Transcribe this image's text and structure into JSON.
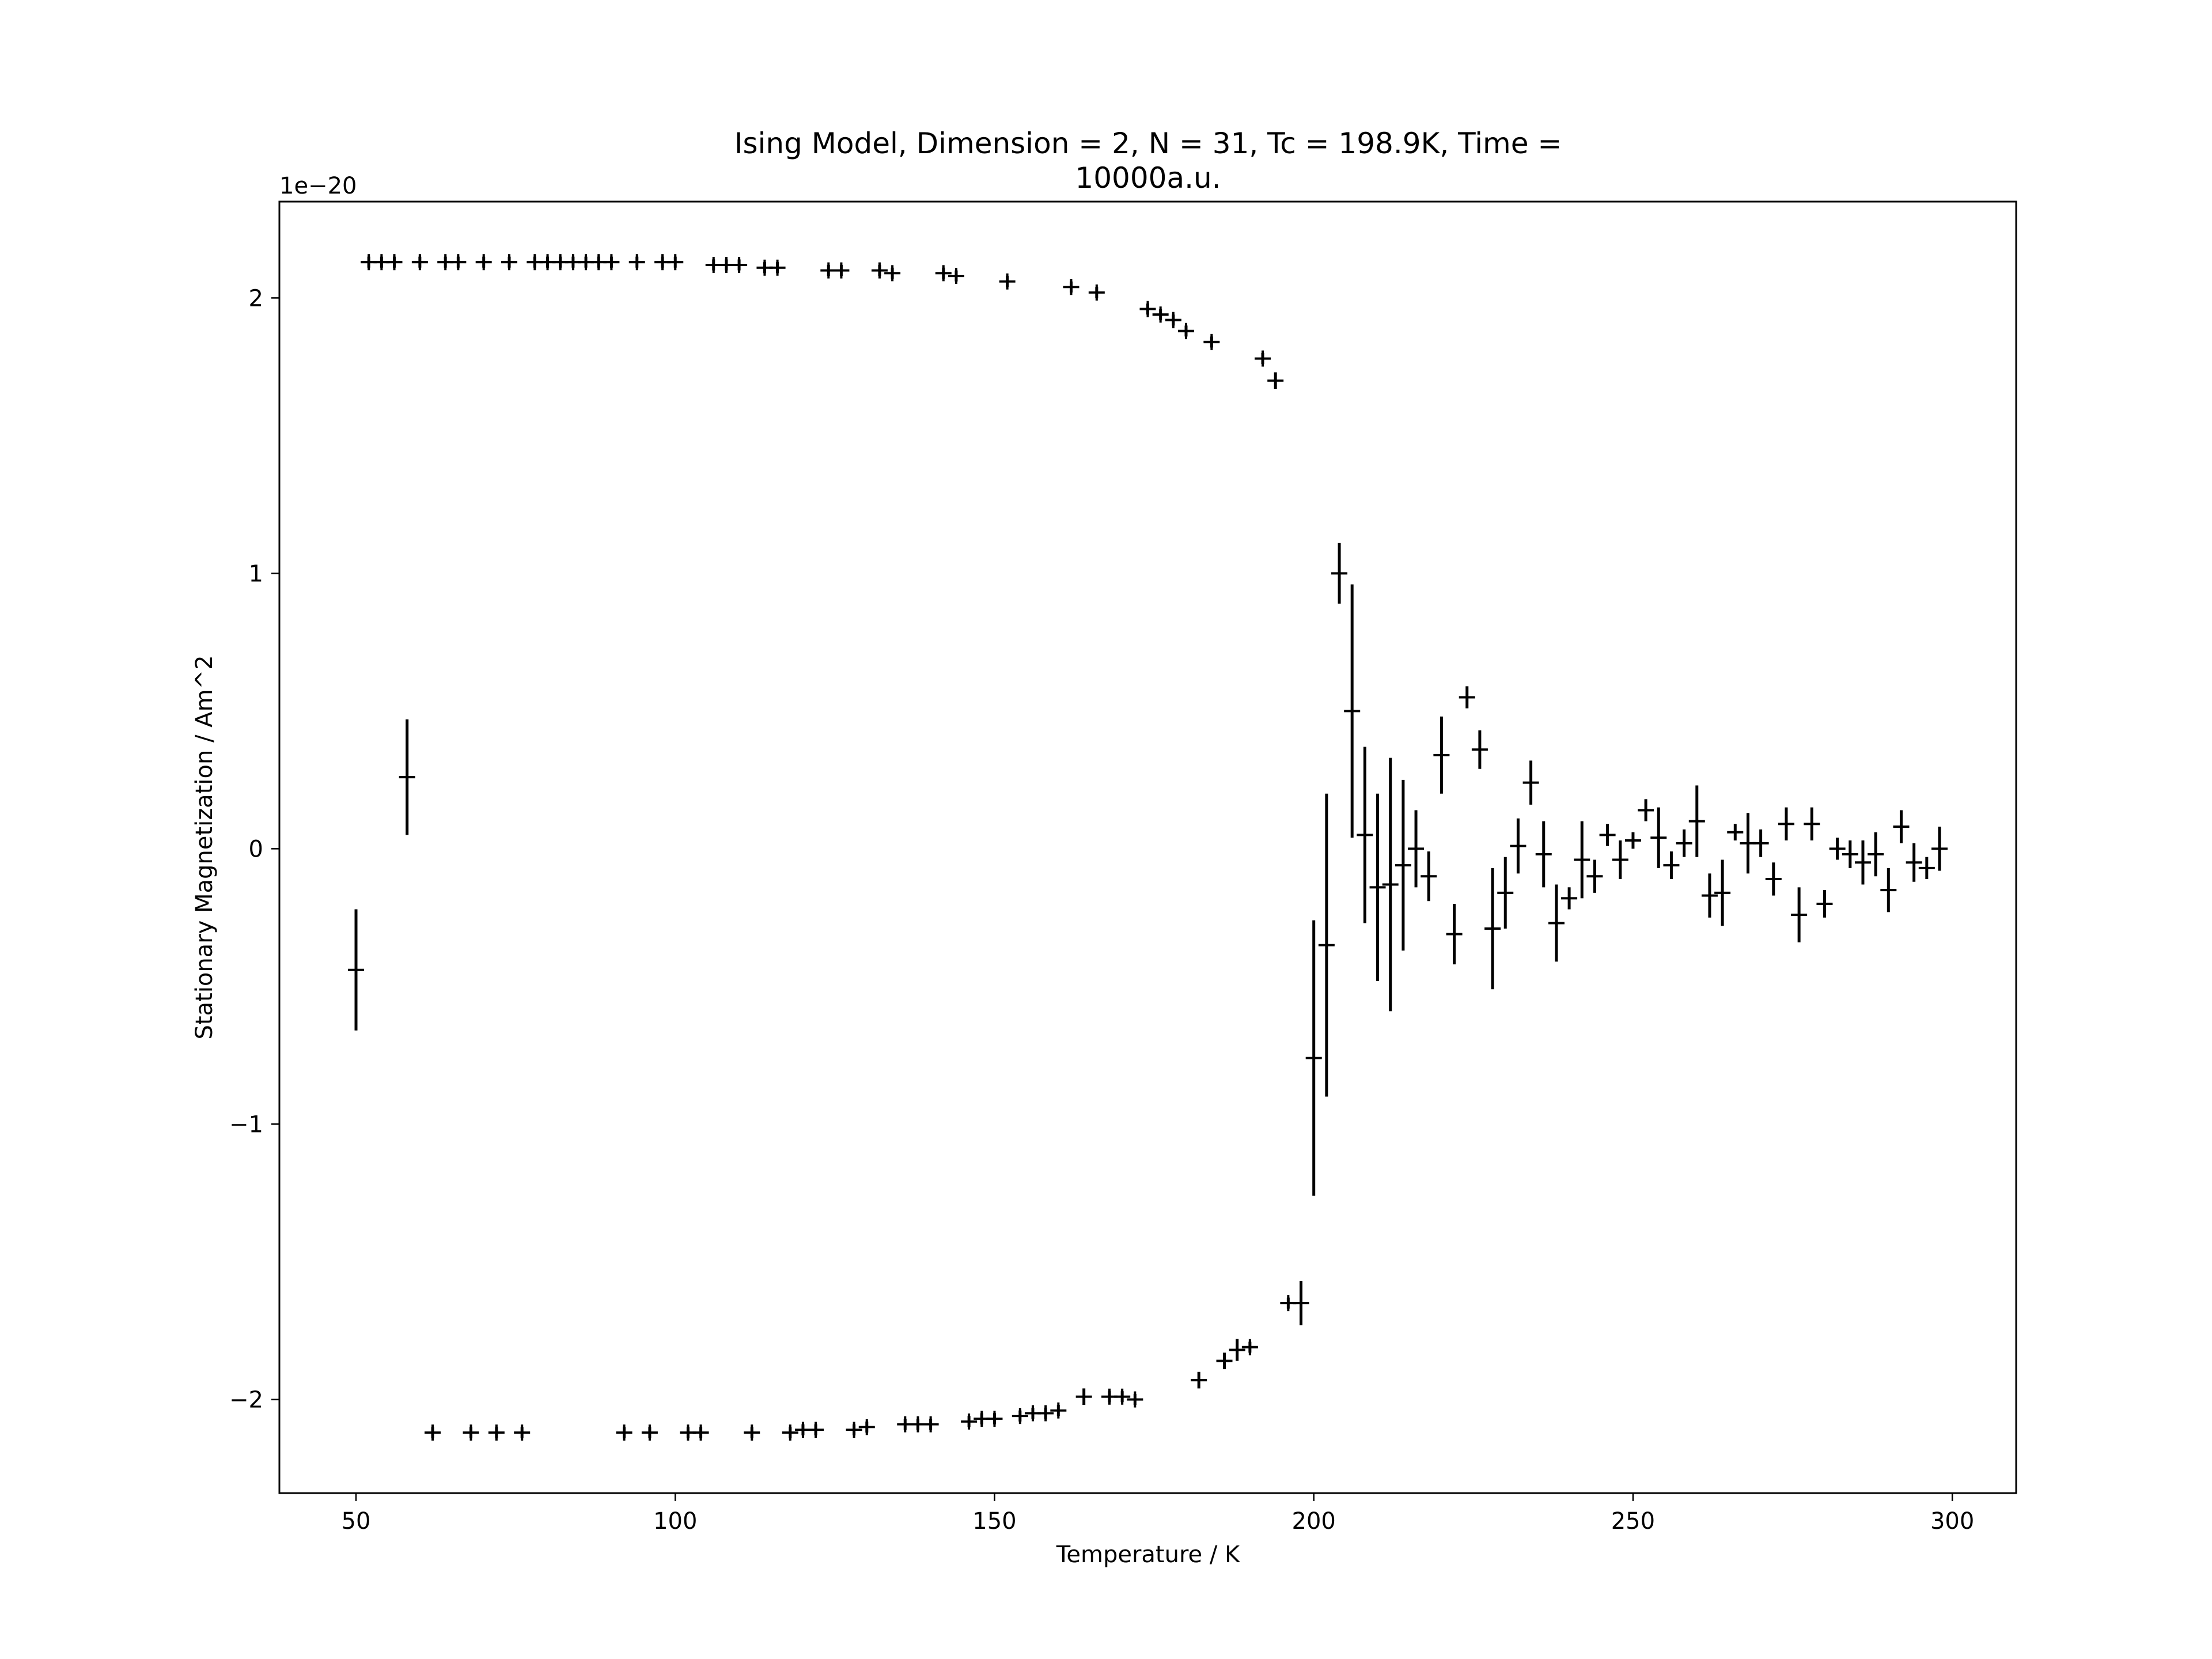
{
  "chart_data": {
    "type": "scatter",
    "title_lines": [
      "Ising Model, Dimension = 2, N = 31, Tc = 198.9K, Time =",
      "10000a.u."
    ],
    "xlabel": "Temperature / K",
    "ylabel": "Stationary Magnetization / Am^2",
    "y_offset_label": "1e−20",
    "xlim": [
      38,
      310
    ],
    "ylim": [
      -2.34,
      2.35
    ],
    "xticks": [
      50,
      100,
      150,
      200,
      250,
      300
    ],
    "yticks": [
      -2,
      -1,
      0,
      1,
      2
    ],
    "xtick_labels": [
      "50",
      "100",
      "150",
      "200",
      "250",
      "300"
    ],
    "ytick_labels": [
      "−2",
      "−1",
      "0",
      "1",
      "2"
    ],
    "grid": false,
    "marker": "+ with vertical error bars",
    "color": "#000000",
    "points": [
      {
        "x": 50,
        "y": -0.44,
        "err": 0.22
      },
      {
        "x": 52,
        "y": 2.13,
        "err": 0.02
      },
      {
        "x": 54,
        "y": 2.13,
        "err": 0.02
      },
      {
        "x": 56,
        "y": 2.13,
        "err": 0.02
      },
      {
        "x": 58,
        "y": 0.26,
        "err": 0.21
      },
      {
        "x": 60,
        "y": 2.13,
        "err": 0.02
      },
      {
        "x": 62,
        "y": -2.12,
        "err": 0.02
      },
      {
        "x": 64,
        "y": 2.13,
        "err": 0.02
      },
      {
        "x": 66,
        "y": 2.13,
        "err": 0.02
      },
      {
        "x": 68,
        "y": -2.12,
        "err": 0.02
      },
      {
        "x": 70,
        "y": 2.13,
        "err": 0.02
      },
      {
        "x": 72,
        "y": -2.12,
        "err": 0.02
      },
      {
        "x": 74,
        "y": 2.13,
        "err": 0.02
      },
      {
        "x": 76,
        "y": -2.12,
        "err": 0.02
      },
      {
        "x": 78,
        "y": 2.13,
        "err": 0.02
      },
      {
        "x": 80,
        "y": 2.13,
        "err": 0.02
      },
      {
        "x": 82,
        "y": 2.13,
        "err": 0.02
      },
      {
        "x": 84,
        "y": 2.13,
        "err": 0.02
      },
      {
        "x": 86,
        "y": 2.13,
        "err": 0.02
      },
      {
        "x": 88,
        "y": 2.13,
        "err": 0.02
      },
      {
        "x": 90,
        "y": 2.13,
        "err": 0.02
      },
      {
        "x": 92,
        "y": -2.12,
        "err": 0.02
      },
      {
        "x": 94,
        "y": 2.13,
        "err": 0.02
      },
      {
        "x": 96,
        "y": -2.12,
        "err": 0.02
      },
      {
        "x": 98,
        "y": 2.13,
        "err": 0.02
      },
      {
        "x": 100,
        "y": 2.13,
        "err": 0.02
      },
      {
        "x": 102,
        "y": -2.12,
        "err": 0.02
      },
      {
        "x": 104,
        "y": -2.12,
        "err": 0.02
      },
      {
        "x": 106,
        "y": 2.12,
        "err": 0.02
      },
      {
        "x": 108,
        "y": 2.12,
        "err": 0.02
      },
      {
        "x": 110,
        "y": 2.12,
        "err": 0.02
      },
      {
        "x": 112,
        "y": -2.12,
        "err": 0.02
      },
      {
        "x": 114,
        "y": 2.11,
        "err": 0.02
      },
      {
        "x": 116,
        "y": 2.11,
        "err": 0.02
      },
      {
        "x": 118,
        "y": -2.12,
        "err": 0.02
      },
      {
        "x": 120,
        "y": -2.11,
        "err": 0.02
      },
      {
        "x": 122,
        "y": -2.11,
        "err": 0.02
      },
      {
        "x": 124,
        "y": 2.1,
        "err": 0.02
      },
      {
        "x": 126,
        "y": 2.1,
        "err": 0.02
      },
      {
        "x": 128,
        "y": -2.11,
        "err": 0.02
      },
      {
        "x": 130,
        "y": -2.1,
        "err": 0.02
      },
      {
        "x": 132,
        "y": 2.1,
        "err": 0.02
      },
      {
        "x": 134,
        "y": 2.09,
        "err": 0.02
      },
      {
        "x": 136,
        "y": -2.09,
        "err": 0.02
      },
      {
        "x": 138,
        "y": -2.09,
        "err": 0.02
      },
      {
        "x": 140,
        "y": -2.09,
        "err": 0.02
      },
      {
        "x": 142,
        "y": 2.09,
        "err": 0.02
      },
      {
        "x": 144,
        "y": 2.08,
        "err": 0.02
      },
      {
        "x": 146,
        "y": -2.08,
        "err": 0.02
      },
      {
        "x": 148,
        "y": -2.07,
        "err": 0.02
      },
      {
        "x": 150,
        "y": -2.07,
        "err": 0.02
      },
      {
        "x": 152,
        "y": 2.06,
        "err": 0.02
      },
      {
        "x": 154,
        "y": -2.06,
        "err": 0.02
      },
      {
        "x": 156,
        "y": -2.05,
        "err": 0.02
      },
      {
        "x": 158,
        "y": -2.05,
        "err": 0.02
      },
      {
        "x": 160,
        "y": -2.04,
        "err": 0.02
      },
      {
        "x": 162,
        "y": 2.04,
        "err": 0.02
      },
      {
        "x": 164,
        "y": -1.99,
        "err": 0.03
      },
      {
        "x": 166,
        "y": 2.02,
        "err": 0.02
      },
      {
        "x": 168,
        "y": -1.99,
        "err": 0.02
      },
      {
        "x": 170,
        "y": -1.99,
        "err": 0.02
      },
      {
        "x": 172,
        "y": -2.0,
        "err": 0.02
      },
      {
        "x": 174,
        "y": 1.96,
        "err": 0.02
      },
      {
        "x": 176,
        "y": 1.94,
        "err": 0.02
      },
      {
        "x": 178,
        "y": 1.92,
        "err": 0.02
      },
      {
        "x": 180,
        "y": 1.88,
        "err": 0.02
      },
      {
        "x": 182,
        "y": -1.93,
        "err": 0.03
      },
      {
        "x": 184,
        "y": 1.84,
        "err": 0.02
      },
      {
        "x": 186,
        "y": -1.86,
        "err": 0.03
      },
      {
        "x": 188,
        "y": -1.82,
        "err": 0.04
      },
      {
        "x": 190,
        "y": -1.81,
        "err": 0.02
      },
      {
        "x": 192,
        "y": 1.78,
        "err": 0.02
      },
      {
        "x": 194,
        "y": 1.7,
        "err": 0.03
      },
      {
        "x": 196,
        "y": -1.65,
        "err": 0.02
      },
      {
        "x": 198,
        "y": -1.65,
        "err": 0.08
      },
      {
        "x": 200,
        "y": -0.76,
        "err": 0.5
      },
      {
        "x": 202,
        "y": -0.35,
        "err": 0.55
      },
      {
        "x": 204,
        "y": 1.0,
        "err": 0.11
      },
      {
        "x": 206,
        "y": 0.5,
        "err": 0.46
      },
      {
        "x": 208,
        "y": 0.05,
        "err": 0.32
      },
      {
        "x": 210,
        "y": -0.14,
        "err": 0.34
      },
      {
        "x": 212,
        "y": -0.13,
        "err": 0.46
      },
      {
        "x": 214,
        "y": -0.06,
        "err": 0.31
      },
      {
        "x": 216,
        "y": 0.0,
        "err": 0.14
      },
      {
        "x": 218,
        "y": -0.1,
        "err": 0.09
      },
      {
        "x": 220,
        "y": 0.34,
        "err": 0.14
      },
      {
        "x": 222,
        "y": -0.31,
        "err": 0.11
      },
      {
        "x": 224,
        "y": 0.55,
        "err": 0.04
      },
      {
        "x": 226,
        "y": 0.36,
        "err": 0.07
      },
      {
        "x": 228,
        "y": -0.29,
        "err": 0.22
      },
      {
        "x": 230,
        "y": -0.16,
        "err": 0.13
      },
      {
        "x": 232,
        "y": 0.01,
        "err": 0.1
      },
      {
        "x": 234,
        "y": 0.24,
        "err": 0.08
      },
      {
        "x": 236,
        "y": -0.02,
        "err": 0.12
      },
      {
        "x": 238,
        "y": -0.27,
        "err": 0.14
      },
      {
        "x": 240,
        "y": -0.18,
        "err": 0.04
      },
      {
        "x": 242,
        "y": -0.04,
        "err": 0.14
      },
      {
        "x": 244,
        "y": -0.1,
        "err": 0.06
      },
      {
        "x": 246,
        "y": 0.05,
        "err": 0.04
      },
      {
        "x": 248,
        "y": -0.04,
        "err": 0.07
      },
      {
        "x": 250,
        "y": 0.03,
        "err": 0.03
      },
      {
        "x": 252,
        "y": 0.14,
        "err": 0.04
      },
      {
        "x": 254,
        "y": 0.04,
        "err": 0.11
      },
      {
        "x": 256,
        "y": -0.06,
        "err": 0.05
      },
      {
        "x": 258,
        "y": 0.02,
        "err": 0.05
      },
      {
        "x": 260,
        "y": 0.1,
        "err": 0.13
      },
      {
        "x": 262,
        "y": -0.17,
        "err": 0.08
      },
      {
        "x": 264,
        "y": -0.16,
        "err": 0.12
      },
      {
        "x": 266,
        "y": 0.06,
        "err": 0.03
      },
      {
        "x": 268,
        "y": 0.02,
        "err": 0.11
      },
      {
        "x": 270,
        "y": 0.02,
        "err": 0.05
      },
      {
        "x": 272,
        "y": -0.11,
        "err": 0.06
      },
      {
        "x": 274,
        "y": 0.09,
        "err": 0.06
      },
      {
        "x": 276,
        "y": -0.24,
        "err": 0.1
      },
      {
        "x": 278,
        "y": 0.09,
        "err": 0.06
      },
      {
        "x": 280,
        "y": -0.2,
        "err": 0.05
      },
      {
        "x": 282,
        "y": 0.0,
        "err": 0.04
      },
      {
        "x": 284,
        "y": -0.02,
        "err": 0.05
      },
      {
        "x": 286,
        "y": -0.05,
        "err": 0.08
      },
      {
        "x": 288,
        "y": -0.02,
        "err": 0.08
      },
      {
        "x": 290,
        "y": -0.15,
        "err": 0.08
      },
      {
        "x": 292,
        "y": 0.08,
        "err": 0.06
      },
      {
        "x": 294,
        "y": -0.05,
        "err": 0.07
      },
      {
        "x": 296,
        "y": -0.07,
        "err": 0.04
      },
      {
        "x": 298,
        "y": 0.0,
        "err": 0.08
      }
    ]
  }
}
